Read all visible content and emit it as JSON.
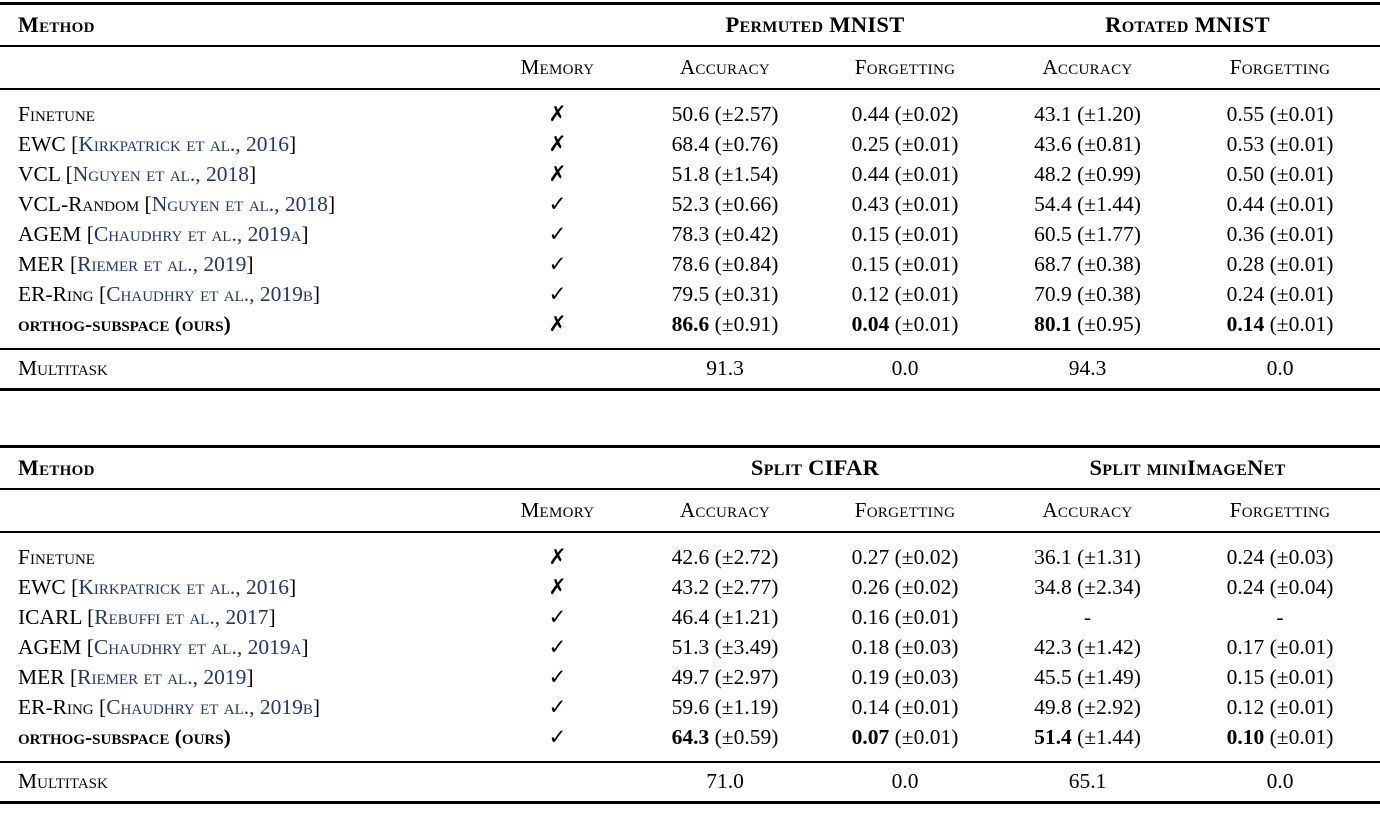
{
  "colors": {
    "citation_link": "#1e3a6e",
    "text": "#000000",
    "background": "#ffffff"
  },
  "glyphs": {
    "memory_yes_icon": "✓",
    "memory_no_icon": "✗"
  },
  "tables": [
    {
      "method_header": "Method",
      "memory_header": "Memory",
      "group_headers": [
        "Permuted MNIST",
        "Rotated MNIST"
      ],
      "sub_headers": [
        "Accuracy",
        "Forgetting",
        "Accuracy",
        "Forgetting"
      ],
      "rows": [
        {
          "method": "Finetune",
          "citation": "",
          "memory": "✗",
          "bold": false,
          "values": [
            {
              "main": "50.6",
              "pm": "(±2.57)"
            },
            {
              "main": "0.44",
              "pm": "(±0.02)"
            },
            {
              "main": "43.1",
              "pm": "(±1.20)"
            },
            {
              "main": "0.55",
              "pm": "(±0.01)"
            }
          ]
        },
        {
          "method": "EWC",
          "citation": "Kirkpatrick et al., 2016",
          "memory": "✗",
          "bold": false,
          "values": [
            {
              "main": "68.4",
              "pm": "(±0.76)"
            },
            {
              "main": "0.25",
              "pm": "(±0.01)"
            },
            {
              "main": "43.6",
              "pm": "(±0.81)"
            },
            {
              "main": "0.53",
              "pm": "(±0.01)"
            }
          ]
        },
        {
          "method": "VCL",
          "citation": "Nguyen et al., 2018",
          "memory": "✗",
          "bold": false,
          "values": [
            {
              "main": "51.8",
              "pm": "(±1.54)"
            },
            {
              "main": "0.44",
              "pm": "(±0.01)"
            },
            {
              "main": "48.2",
              "pm": "(±0.99)"
            },
            {
              "main": "0.50",
              "pm": "(±0.01)"
            }
          ]
        },
        {
          "method": "VCL-Random",
          "citation": "Nguyen et al., 2018",
          "memory": "✓",
          "bold": false,
          "values": [
            {
              "main": "52.3",
              "pm": "(±0.66)"
            },
            {
              "main": "0.43",
              "pm": "(±0.01)"
            },
            {
              "main": "54.4",
              "pm": "(±1.44)"
            },
            {
              "main": "0.44",
              "pm": "(±0.01)"
            }
          ]
        },
        {
          "method": "AGEM",
          "citation": "Chaudhry et al., 2019a",
          "memory": "✓",
          "bold": false,
          "values": [
            {
              "main": "78.3",
              "pm": "(±0.42)"
            },
            {
              "main": "0.15",
              "pm": "(±0.01)"
            },
            {
              "main": "60.5",
              "pm": "(±1.77)"
            },
            {
              "main": "0.36",
              "pm": "(±0.01)"
            }
          ]
        },
        {
          "method": "MER",
          "citation": "Riemer et al., 2019",
          "memory": "✓",
          "bold": false,
          "values": [
            {
              "main": "78.6",
              "pm": "(±0.84)"
            },
            {
              "main": "0.15",
              "pm": "(±0.01)"
            },
            {
              "main": "68.7",
              "pm": "(±0.38)"
            },
            {
              "main": "0.28",
              "pm": "(±0.01)"
            }
          ]
        },
        {
          "method": "ER-Ring",
          "citation": "Chaudhry et al., 2019b",
          "memory": "✓",
          "bold": false,
          "values": [
            {
              "main": "79.5",
              "pm": "(±0.31)"
            },
            {
              "main": "0.12",
              "pm": "(±0.01)"
            },
            {
              "main": "70.9",
              "pm": "(±0.38)"
            },
            {
              "main": "0.24",
              "pm": "(±0.01)"
            }
          ]
        },
        {
          "method": "orthog-subspace (ours)",
          "citation": "",
          "memory": "✗",
          "bold": true,
          "values": [
            {
              "main": "86.6",
              "pm": "(±0.91)"
            },
            {
              "main": "0.04",
              "pm": "(±0.01)"
            },
            {
              "main": "80.1",
              "pm": "(±0.95)"
            },
            {
              "main": "0.14",
              "pm": "(±0.01)"
            }
          ]
        }
      ],
      "multitask": {
        "label": "Multitask",
        "values": [
          "91.3",
          "0.0",
          "94.3",
          "0.0"
        ]
      }
    },
    {
      "method_header": "Method",
      "memory_header": "Memory",
      "group_headers": [
        "Split CIFAR",
        "Split miniImageNet"
      ],
      "sub_headers": [
        "Accuracy",
        "Forgetting",
        "Accuracy",
        "Forgetting"
      ],
      "rows": [
        {
          "method": "Finetune",
          "citation": "",
          "memory": "✗",
          "bold": false,
          "values": [
            {
              "main": "42.6",
              "pm": "(±2.72)"
            },
            {
              "main": "0.27",
              "pm": "(±0.02)"
            },
            {
              "main": "36.1",
              "pm": "(±1.31)"
            },
            {
              "main": "0.24",
              "pm": "(±0.03)"
            }
          ]
        },
        {
          "method": "EWC",
          "citation": "Kirkpatrick et al., 2016",
          "memory": "✗",
          "bold": false,
          "values": [
            {
              "main": "43.2",
              "pm": "(±2.77)"
            },
            {
              "main": "0.26",
              "pm": "(±0.02)"
            },
            {
              "main": "34.8",
              "pm": "(±2.34)"
            },
            {
              "main": "0.24",
              "pm": "(±0.04)"
            }
          ]
        },
        {
          "method": "ICARL",
          "citation": "Rebuffi et al., 2017",
          "memory": "✓",
          "bold": false,
          "values": [
            {
              "main": "46.4",
              "pm": "(±1.21)"
            },
            {
              "main": "0.16",
              "pm": "(±0.01)"
            },
            {
              "main": "-",
              "pm": ""
            },
            {
              "main": "-",
              "pm": ""
            }
          ]
        },
        {
          "method": "AGEM",
          "citation": "Chaudhry et al., 2019a",
          "memory": "✓",
          "bold": false,
          "values": [
            {
              "main": "51.3",
              "pm": "(±3.49)"
            },
            {
              "main": "0.18",
              "pm": "(±0.03)"
            },
            {
              "main": "42.3",
              "pm": "(±1.42)"
            },
            {
              "main": "0.17",
              "pm": "(±0.01)"
            }
          ]
        },
        {
          "method": "MER",
          "citation": "Riemer et al., 2019",
          "memory": "✓",
          "bold": false,
          "values": [
            {
              "main": "49.7",
              "pm": "(±2.97)"
            },
            {
              "main": "0.19",
              "pm": "(±0.03)"
            },
            {
              "main": "45.5",
              "pm": "(±1.49)"
            },
            {
              "main": "0.15",
              "pm": "(±0.01)"
            }
          ]
        },
        {
          "method": "ER-Ring",
          "citation": "Chaudhry et al., 2019b",
          "memory": "✓",
          "bold": false,
          "values": [
            {
              "main": "59.6",
              "pm": "(±1.19)"
            },
            {
              "main": "0.14",
              "pm": "(±0.01)"
            },
            {
              "main": "49.8",
              "pm": "(±2.92)"
            },
            {
              "main": "0.12",
              "pm": "(±0.01)"
            }
          ]
        },
        {
          "method": "orthog-subspace (ours)",
          "citation": "",
          "memory": "✓",
          "bold": true,
          "values": [
            {
              "main": "64.3",
              "pm": "(±0.59)"
            },
            {
              "main": "0.07",
              "pm": "(±0.01)"
            },
            {
              "main": "51.4",
              "pm": "(±1.44)"
            },
            {
              "main": "0.10",
              "pm": "(±0.01)"
            }
          ]
        }
      ],
      "multitask": {
        "label": "Multitask",
        "values": [
          "71.0",
          "0.0",
          "65.1",
          "0.0"
        ]
      }
    }
  ]
}
